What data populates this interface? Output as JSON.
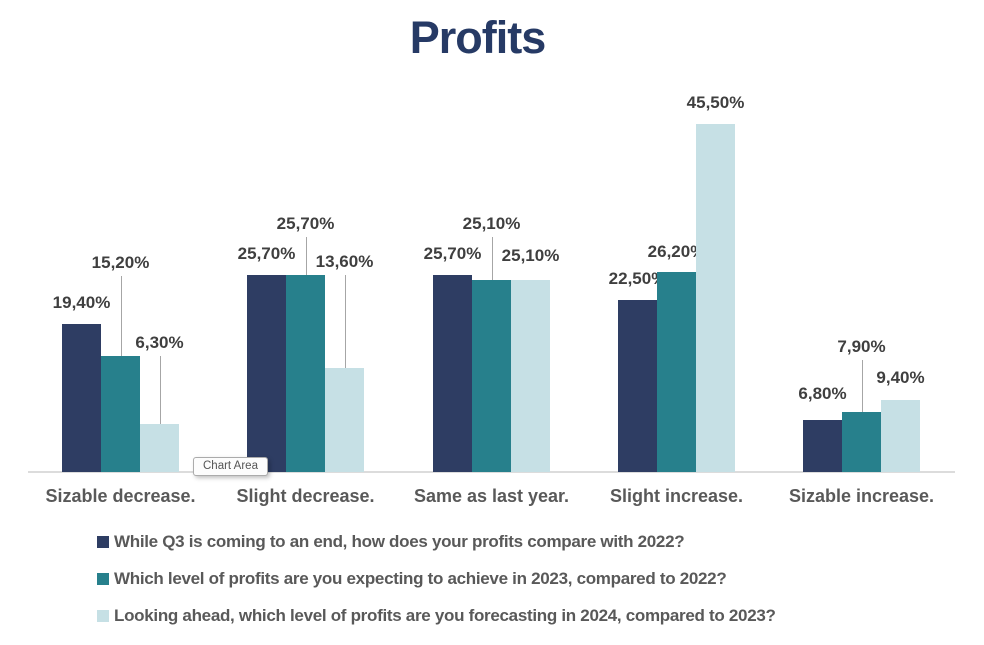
{
  "title": "Profits",
  "tooltip_label": "Chart Area",
  "colors": {
    "title": "#263A65",
    "data_label": "#3F3F3F",
    "category_label": "#595959",
    "legend_text": "#595959",
    "axis_line": "#DCDCDC",
    "leader_line": "#A6A6A6",
    "background": "#FFFFFF"
  },
  "chart_data": {
    "type": "bar",
    "title": "Profits",
    "categories": [
      "Sizable decrease.",
      "Slight decrease.",
      "Same as last year.",
      "Slight increase.",
      "Sizable increase."
    ],
    "series": [
      {
        "name": "While Q3 is coming to an end, how does your profits compare with 2022?",
        "color": "#2E3D63",
        "values": [
          19.4,
          25.7,
          25.7,
          22.5,
          6.8
        ],
        "labels": [
          "19,40%",
          "25,70%",
          "25,70%",
          "22,50%",
          "6,80%"
        ]
      },
      {
        "name": "Which level of profits are you expecting to achieve in 2023, compared to 2022?",
        "color": "#27808C",
        "values": [
          15.2,
          25.7,
          25.1,
          26.2,
          7.9
        ],
        "labels": [
          "15,20%",
          "25,70%",
          "25,10%",
          "26,20%",
          "7,90%"
        ]
      },
      {
        "name": "Looking ahead, which level of profits are you forecasting in 2024, compared to 2023?",
        "color": "#C6E0E5",
        "values": [
          6.3,
          13.6,
          25.1,
          45.5,
          9.4
        ],
        "labels": [
          "6,30%",
          "13,60%",
          "25,10%",
          "45,50%",
          "9,40%"
        ]
      }
    ],
    "ylim": [
      0,
      50
    ],
    "xlabel": "",
    "ylabel": "",
    "grid": false,
    "legend_position": "bottom",
    "value_format": "percent-comma-decimal",
    "data_labels_shown": true
  }
}
